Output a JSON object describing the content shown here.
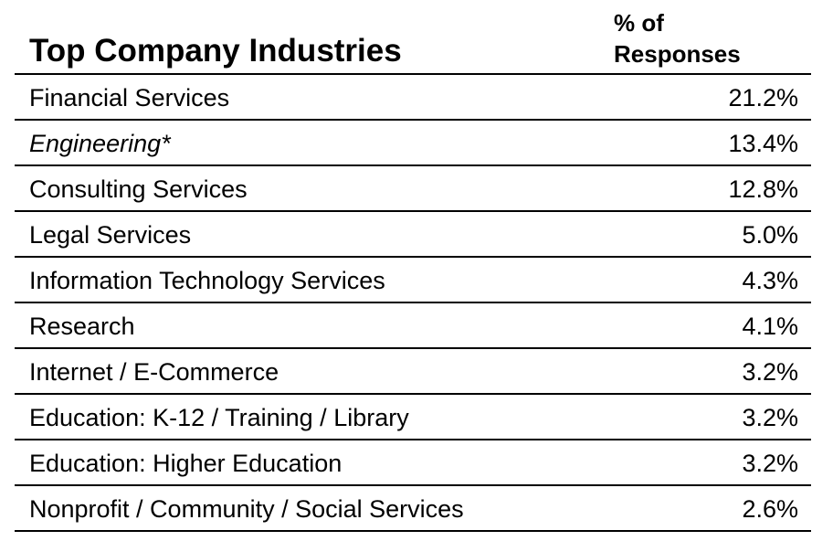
{
  "chart_data": {
    "type": "table",
    "title": "Top Company Industries",
    "column_header": [
      "% of",
      "Responses"
    ],
    "rows": [
      {
        "label": "Financial Services",
        "value": "21.2%",
        "italic": false
      },
      {
        "label": "Engineering*",
        "value": "13.4%",
        "italic": true
      },
      {
        "label": "Consulting Services",
        "value": "12.8%",
        "italic": false
      },
      {
        "label": "Legal Services",
        "value": "5.0%",
        "italic": false
      },
      {
        "label": "Information Technology Services",
        "value": "4.3%",
        "italic": false
      },
      {
        "label": "Research",
        "value": "4.1%",
        "italic": false
      },
      {
        "label": "Internet / E-Commerce",
        "value": "3.2%",
        "italic": false
      },
      {
        "label": "Education: K-12 / Training / Library",
        "value": "3.2%",
        "italic": false
      },
      {
        "label": "Education: Higher Education",
        "value": "3.2%",
        "italic": false
      },
      {
        "label": "Nonprofit / Community / Social Services",
        "value": "2.6%",
        "italic": false
      }
    ]
  }
}
